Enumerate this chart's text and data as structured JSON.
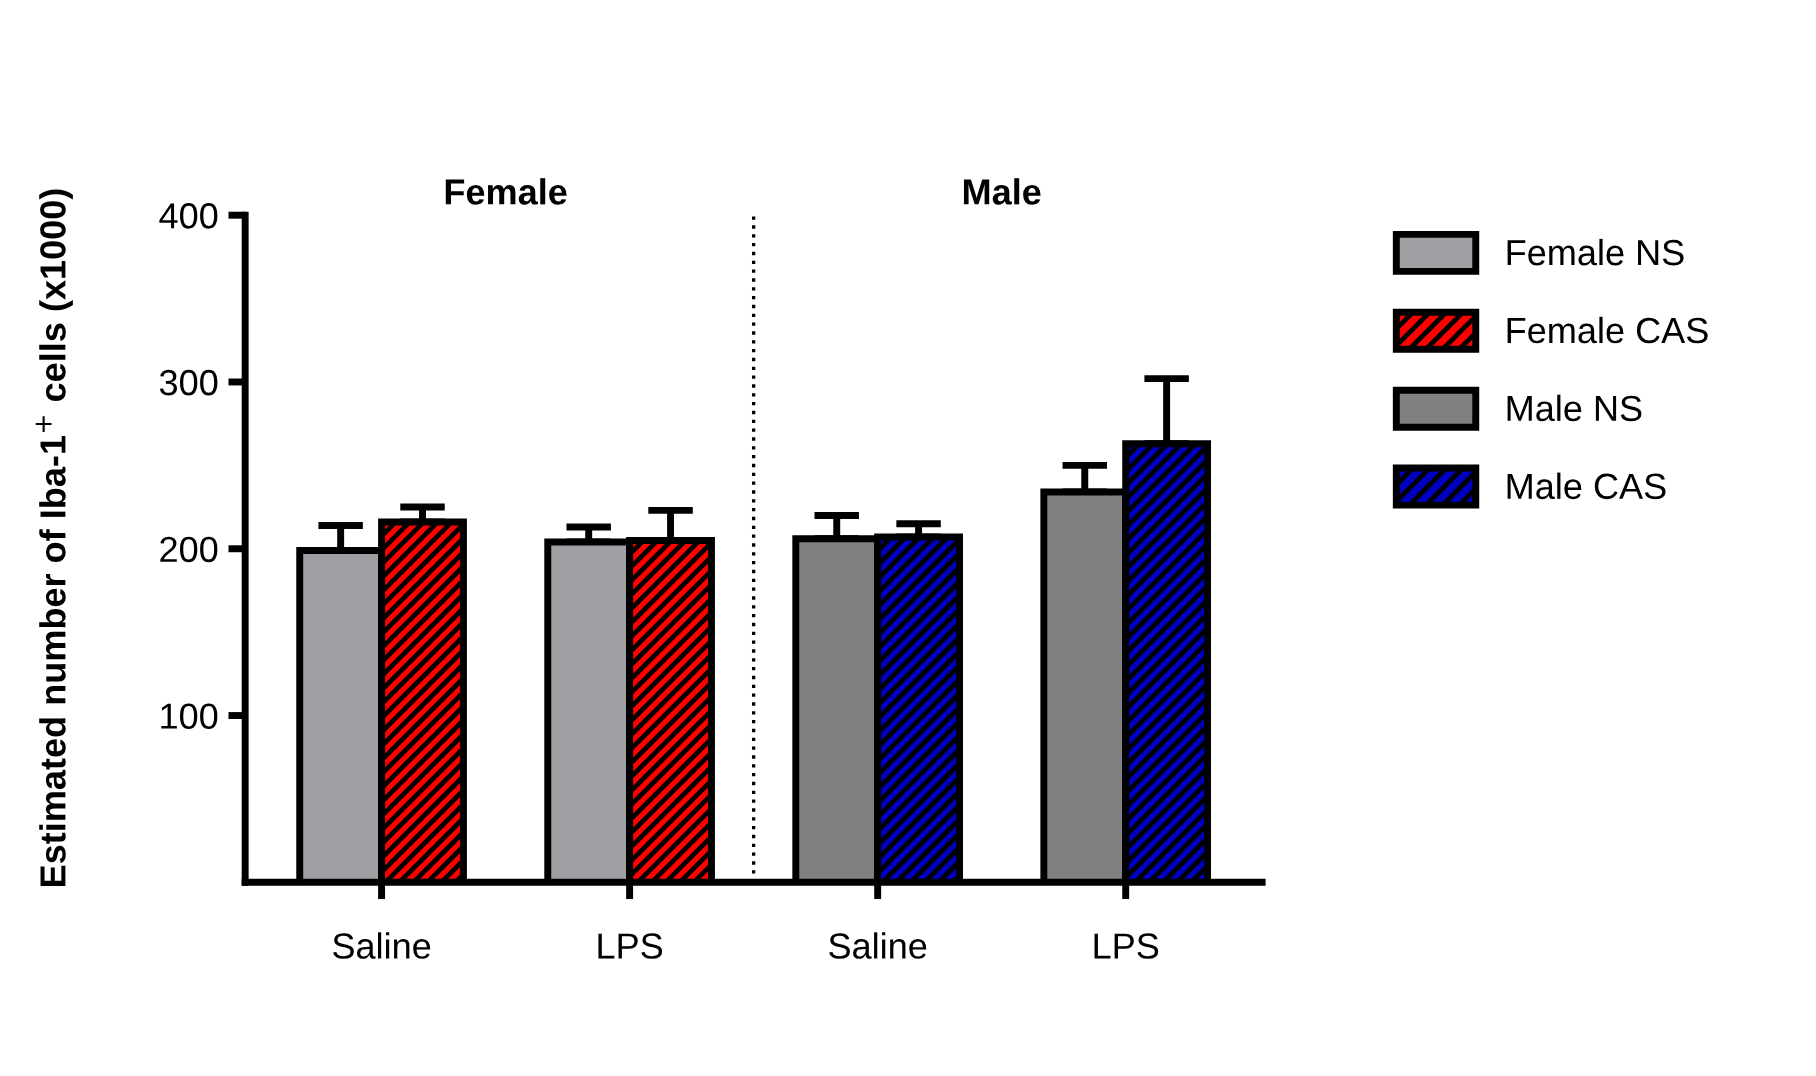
{
  "chart_data": {
    "type": "bar",
    "ylabel": "Estimated number of Iba-1$^{+}$ cells (x1000)",
    "categories": [
      "Saline",
      "LPS",
      "Saline",
      "LPS"
    ],
    "series": [
      {
        "name": "Female NS",
        "color": "#a0a0a4",
        "values": [
          199,
          204,
          null,
          null
        ],
        "errors": [
          [
            199,
            214
          ],
          [
            204,
            213
          ],
          null,
          null
        ]
      },
      {
        "name": "Female CAS",
        "color": "#ff0000",
        "values": [
          216,
          205,
          null,
          null
        ],
        "errors": [
          [
            216,
            225
          ],
          [
            205,
            223
          ],
          null,
          null
        ]
      },
      {
        "name": "Male NS",
        "color": "#808080",
        "values": [
          null,
          null,
          206,
          234
        ],
        "errors": [
          null,
          null,
          [
            206,
            220
          ],
          [
            234,
            250
          ]
        ]
      },
      {
        "name": "Male CAS",
        "color": "#0000c0",
        "values": [
          null,
          null,
          207,
          263
        ],
        "errors": [
          null,
          null,
          [
            207,
            215
          ],
          [
            263,
            302
          ]
        ]
      }
    ],
    "annotations": [
      "Female",
      "Male"
    ],
    "ylim": [
      0,
      400
    ],
    "yticks": [
      100,
      200,
      300,
      400
    ],
    "grid": false,
    "legend": "right"
  }
}
